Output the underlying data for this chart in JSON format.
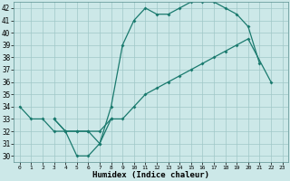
{
  "xlabel": "Humidex (Indice chaleur)",
  "xlim": [
    -0.5,
    23.5
  ],
  "ylim": [
    29.5,
    42.5
  ],
  "yticks": [
    30,
    31,
    32,
    33,
    34,
    35,
    36,
    37,
    38,
    39,
    40,
    41,
    42
  ],
  "xticks": [
    0,
    1,
    2,
    3,
    4,
    5,
    6,
    7,
    8,
    9,
    10,
    11,
    12,
    13,
    14,
    15,
    16,
    17,
    18,
    19,
    20,
    21,
    22,
    23
  ],
  "bg_color": "#cce8e8",
  "line_color": "#1a7a6e",
  "grid_color": "#a0c8c8",
  "line1_x": [
    0,
    1,
    2,
    3,
    4,
    5,
    6,
    7,
    8
  ],
  "line1_y": [
    34,
    33,
    33,
    32,
    32,
    30,
    30,
    31,
    33
  ],
  "line2_x": [
    3,
    4,
    5,
    6,
    7,
    8,
    9,
    10,
    11,
    12,
    13,
    14,
    15,
    16,
    17,
    18,
    19,
    20,
    21
  ],
  "line2_y": [
    33,
    32,
    32,
    32,
    31,
    34,
    39,
    41,
    42,
    41.5,
    41.5,
    42,
    42.5,
    42.5,
    42.5,
    42,
    41.5,
    40.5,
    37.5
  ],
  "line3_x": [
    3,
    4,
    5,
    6,
    7,
    8,
    9,
    10,
    11,
    12,
    13,
    14,
    15,
    16,
    17,
    18,
    19,
    20,
    22
  ],
  "line3_y": [
    33,
    32,
    32,
    32,
    32,
    33,
    33,
    34,
    35,
    35.5,
    36,
    36.5,
    37,
    37.5,
    38,
    38.5,
    39,
    39.5,
    36
  ]
}
